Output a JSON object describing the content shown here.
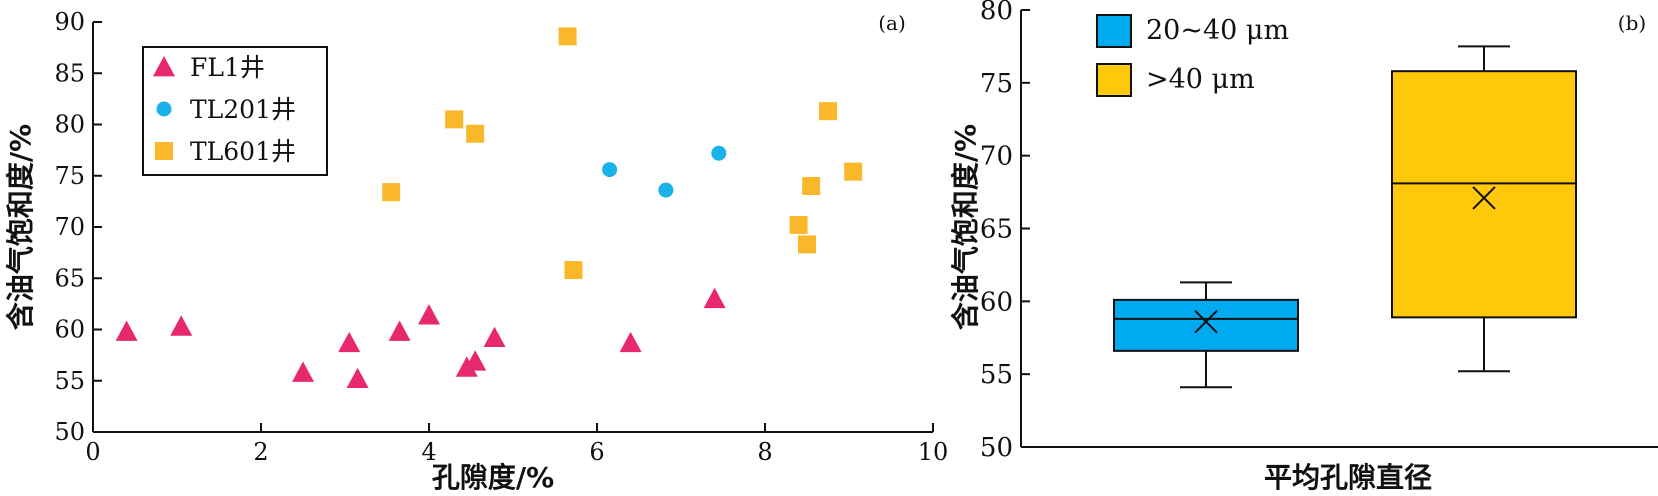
{
  "chart_data": [
    {
      "type": "scatter",
      "panel_label": "(a)",
      "xlabel": "孔隙度/%",
      "ylabel": "含油气饱和度/%",
      "xlim": [
        0,
        10
      ],
      "ylim": [
        50,
        90
      ],
      "x_ticks": [
        "0",
        "2",
        "4",
        "6",
        "8",
        "10"
      ],
      "y_ticks": [
        "50",
        "55",
        "60",
        "65",
        "70",
        "75",
        "80",
        "85",
        "90"
      ],
      "legend_position": "top-left",
      "series": [
        {
          "name": "FL1井",
          "marker": "triangle",
          "color": "#e8286e",
          "points": [
            [
              0.4,
              59.8
            ],
            [
              1.05,
              60.3
            ],
            [
              2.5,
              55.8
            ],
            [
              3.05,
              58.7
            ],
            [
              3.15,
              55.2
            ],
            [
              3.65,
              59.8
            ],
            [
              4.0,
              61.4
            ],
            [
              4.45,
              56.3
            ],
            [
              4.55,
              56.9
            ],
            [
              4.78,
              59.2
            ],
            [
              6.4,
              58.7
            ],
            [
              7.4,
              63.0
            ]
          ]
        },
        {
          "name": "TL201井",
          "marker": "circle",
          "color": "#1ab2e8",
          "points": [
            [
              6.15,
              75.6
            ],
            [
              6.82,
              73.6
            ],
            [
              7.45,
              77.2
            ]
          ]
        },
        {
          "name": "TL601井",
          "marker": "square",
          "color": "#f9b72a",
          "points": [
            [
              3.55,
              73.4
            ],
            [
              4.3,
              80.5
            ],
            [
              4.55,
              79.1
            ],
            [
              5.65,
              88.6
            ],
            [
              5.72,
              65.8
            ],
            [
              8.4,
              70.2
            ],
            [
              8.5,
              68.3
            ],
            [
              8.55,
              74.0
            ],
            [
              8.75,
              81.3
            ],
            [
              9.05,
              75.4
            ]
          ]
        }
      ]
    },
    {
      "type": "box",
      "panel_label": "(b)",
      "xlabel": "平均孔隙直径",
      "ylabel": "含油气饱和度/%",
      "ylim": [
        50,
        80
      ],
      "y_ticks": [
        "50",
        "55",
        "60",
        "65",
        "70",
        "75",
        "80"
      ],
      "legend_position": "top-left",
      "series": [
        {
          "name": "20~40 μm",
          "color": "#00aaf0",
          "min": 54.1,
          "q1": 56.6,
          "median": 58.8,
          "q3": 60.1,
          "max": 61.3,
          "mean": 58.6
        },
        {
          "name": ">40 μm",
          "color": "#ffc80a",
          "min": 55.2,
          "q1": 58.9,
          "median": 68.1,
          "q3": 75.8,
          "max": 77.5,
          "mean": 67.1
        }
      ]
    }
  ]
}
